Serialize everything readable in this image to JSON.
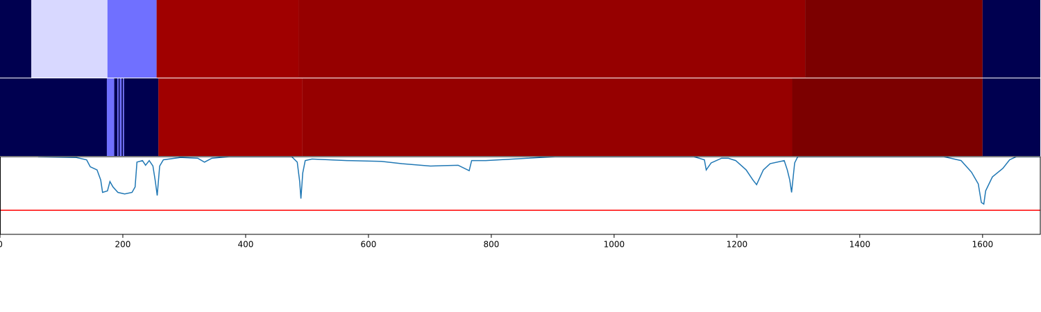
{
  "chart_data": {
    "type": "line",
    "xlim": [
      0,
      1694
    ],
    "ylim": [
      0,
      1
    ],
    "xticks": [
      0,
      200,
      400,
      600,
      800,
      1000,
      1200,
      1400,
      1600
    ],
    "heatmap_rows": [
      {
        "segments": [
          {
            "start": 0,
            "end": 51,
            "color": "#000050"
          },
          {
            "start": 51,
            "end": 175,
            "color": "#d8d8ff"
          },
          {
            "start": 175,
            "end": 255,
            "color": "#7070ff"
          },
          {
            "start": 255,
            "end": 486,
            "color": "#a00000"
          },
          {
            "start": 486,
            "end": 1311,
            "color": "#960000"
          },
          {
            "start": 1311,
            "end": 1600,
            "color": "#7c0000"
          },
          {
            "start": 1600,
            "end": 1694,
            "color": "#000050"
          }
        ]
      },
      {
        "segments": [
          {
            "start": 0,
            "end": 174,
            "color": "#000050"
          },
          {
            "start": 174,
            "end": 186,
            "color": "#7070ff"
          },
          {
            "start": 186,
            "end": 191,
            "color": "#000050"
          },
          {
            "start": 191,
            "end": 193,
            "color": "#7070ff"
          },
          {
            "start": 193,
            "end": 195,
            "color": "#000050"
          },
          {
            "start": 195,
            "end": 198,
            "color": "#7070ff"
          },
          {
            "start": 198,
            "end": 200,
            "color": "#000050"
          },
          {
            "start": 200,
            "end": 202,
            "color": "#7070ff"
          },
          {
            "start": 202,
            "end": 258,
            "color": "#000050"
          },
          {
            "start": 258,
            "end": 492,
            "color": "#a00000"
          },
          {
            "start": 492,
            "end": 1290,
            "color": "#960000"
          },
          {
            "start": 1290,
            "end": 1600,
            "color": "#7c0000"
          },
          {
            "start": 1600,
            "end": 1694,
            "color": "#000050"
          }
        ]
      }
    ],
    "series": [
      {
        "color": "#1f77b4",
        "x": [
          62,
          124,
          141,
          147,
          158,
          164,
          167,
          175,
          179,
          184,
          192,
          203,
          215,
          220,
          223,
          232,
          237,
          243,
          249,
          253,
          256,
          260,
          266,
          294,
          322,
          333,
          345,
          373,
          475,
          484,
          488,
          490,
          493,
          497,
          508,
          565,
          621,
          655,
          701,
          746,
          764,
          768,
          791,
          836,
          859,
          904,
          1130,
          1147,
          1150,
          1158,
          1175,
          1186,
          1198,
          1215,
          1226,
          1232,
          1243,
          1254,
          1277,
          1282,
          1286,
          1289,
          1294,
          1299,
          1537,
          1565,
          1582,
          1593,
          1598,
          1602,
          1605,
          1616,
          1633,
          1644,
          1655,
          1694
        ],
        "values": [
          1.0,
          0.99,
          0.96,
          0.87,
          0.83,
          0.7,
          0.54,
          0.56,
          0.68,
          0.61,
          0.54,
          0.52,
          0.54,
          0.61,
          0.93,
          0.95,
          0.89,
          0.95,
          0.88,
          0.68,
          0.5,
          0.88,
          0.96,
          0.99,
          0.98,
          0.93,
          0.98,
          1.0,
          1.0,
          0.93,
          0.68,
          0.46,
          0.79,
          0.95,
          0.97,
          0.95,
          0.94,
          0.91,
          0.88,
          0.89,
          0.82,
          0.95,
          0.95,
          0.97,
          0.98,
          1.0,
          1.0,
          0.96,
          0.83,
          0.92,
          0.98,
          0.98,
          0.95,
          0.83,
          0.7,
          0.64,
          0.83,
          0.91,
          0.95,
          0.83,
          0.7,
          0.54,
          0.92,
          1.0,
          1.0,
          0.95,
          0.8,
          0.65,
          0.41,
          0.39,
          0.56,
          0.74,
          0.85,
          0.96,
          1.0,
          1.0
        ]
      }
    ],
    "hline": {
      "value": 0.31,
      "color": "#ff0000"
    }
  }
}
